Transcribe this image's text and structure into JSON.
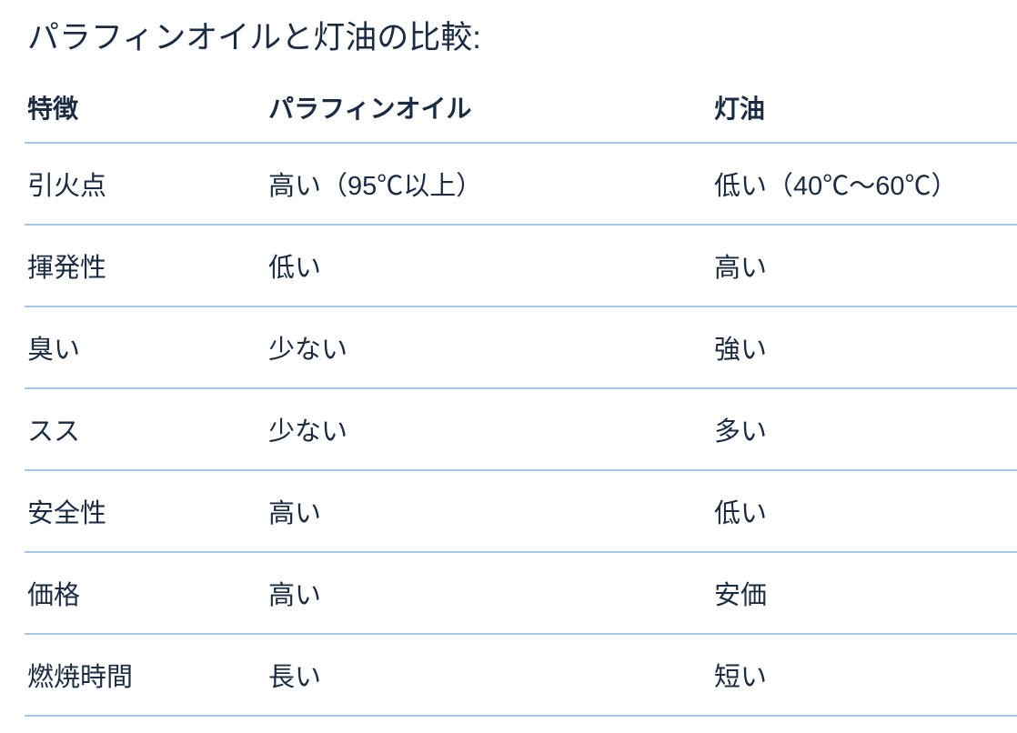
{
  "title": "パラフィンオイルと灯油の比較:",
  "table": {
    "headers": {
      "feature": "特徴",
      "paraffin": "パラフィンオイル",
      "kerosene": "灯油"
    },
    "rows": [
      {
        "feature": "引火点",
        "paraffin": "高い（95℃以上）",
        "kerosene": "低い（40℃〜60℃）"
      },
      {
        "feature": "揮発性",
        "paraffin": "低い",
        "kerosene": "高い"
      },
      {
        "feature": "臭い",
        "paraffin": "少ない",
        "kerosene": "強い"
      },
      {
        "feature": "スス",
        "paraffin": "少ない",
        "kerosene": "多い"
      },
      {
        "feature": "安全性",
        "paraffin": "高い",
        "kerosene": "低い"
      },
      {
        "feature": "価格",
        "paraffin": "高い",
        "kerosene": "安価"
      },
      {
        "feature": "燃焼時間",
        "paraffin": "長い",
        "kerosene": "短い"
      }
    ]
  },
  "colors": {
    "text": "#1a2b42",
    "divider": "#a8c7e8",
    "background": "#ffffff"
  }
}
